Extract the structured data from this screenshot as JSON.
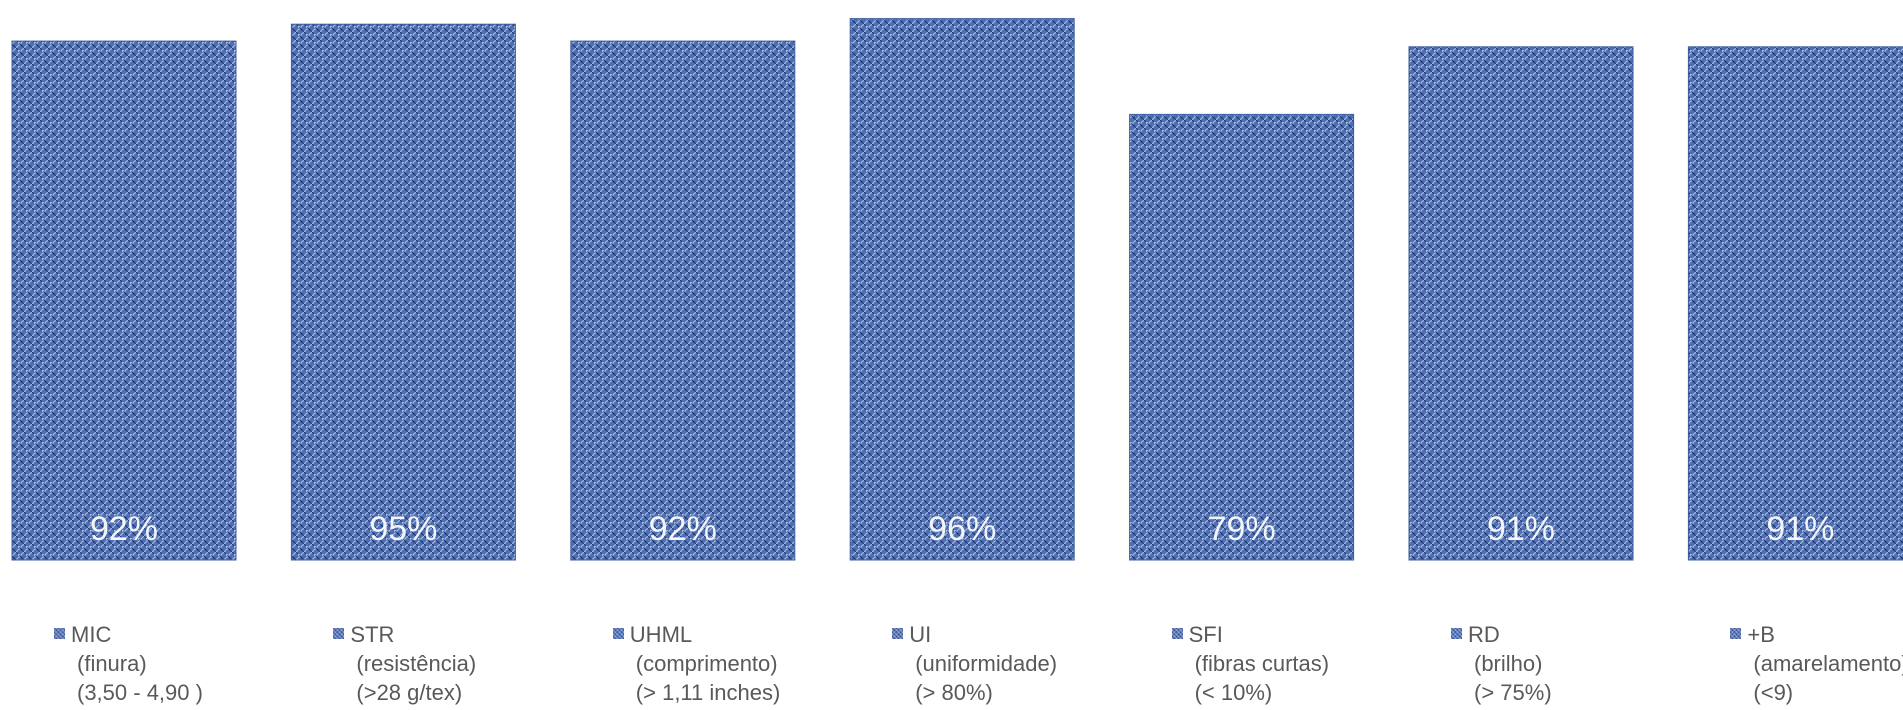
{
  "chart_data": {
    "type": "bar",
    "categories": [
      "MIC",
      "STR",
      "UHML",
      "UI",
      "SFI",
      "RD",
      "+B"
    ],
    "values": [
      92,
      95,
      92,
      96,
      79,
      91,
      91
    ],
    "data_labels": [
      "92%",
      "95%",
      "92%",
      "96%",
      "79%",
      "91%",
      "91%"
    ],
    "legend": [
      {
        "name": "MIC",
        "line1": "(finura)",
        "line2": "(3,50 - 4,90 )"
      },
      {
        "name": "STR",
        "line1": "(resistência)",
        "line2": "(>28 g/tex)"
      },
      {
        "name": "UHML",
        "line1": "(comprimento)",
        "line2": "(> 1,11 inches)"
      },
      {
        "name": "UI",
        "line1": "(uniformidade)",
        "line2": "(> 80%)"
      },
      {
        "name": "SFI",
        "line1": "(fibras curtas)",
        "line2": "(< 10%)"
      },
      {
        "name": "RD",
        "line1": "(brilho)",
        "line2": "(> 75%)"
      },
      {
        "name": "+B",
        "line1": "(amarelamento)",
        "line2": "(<9)"
      }
    ],
    "ylim": [
      0,
      100
    ],
    "grid": false,
    "legend_position": "bottom",
    "bar_color": "#4f6fb2",
    "title": "",
    "xlabel": "",
    "ylabel": ""
  }
}
